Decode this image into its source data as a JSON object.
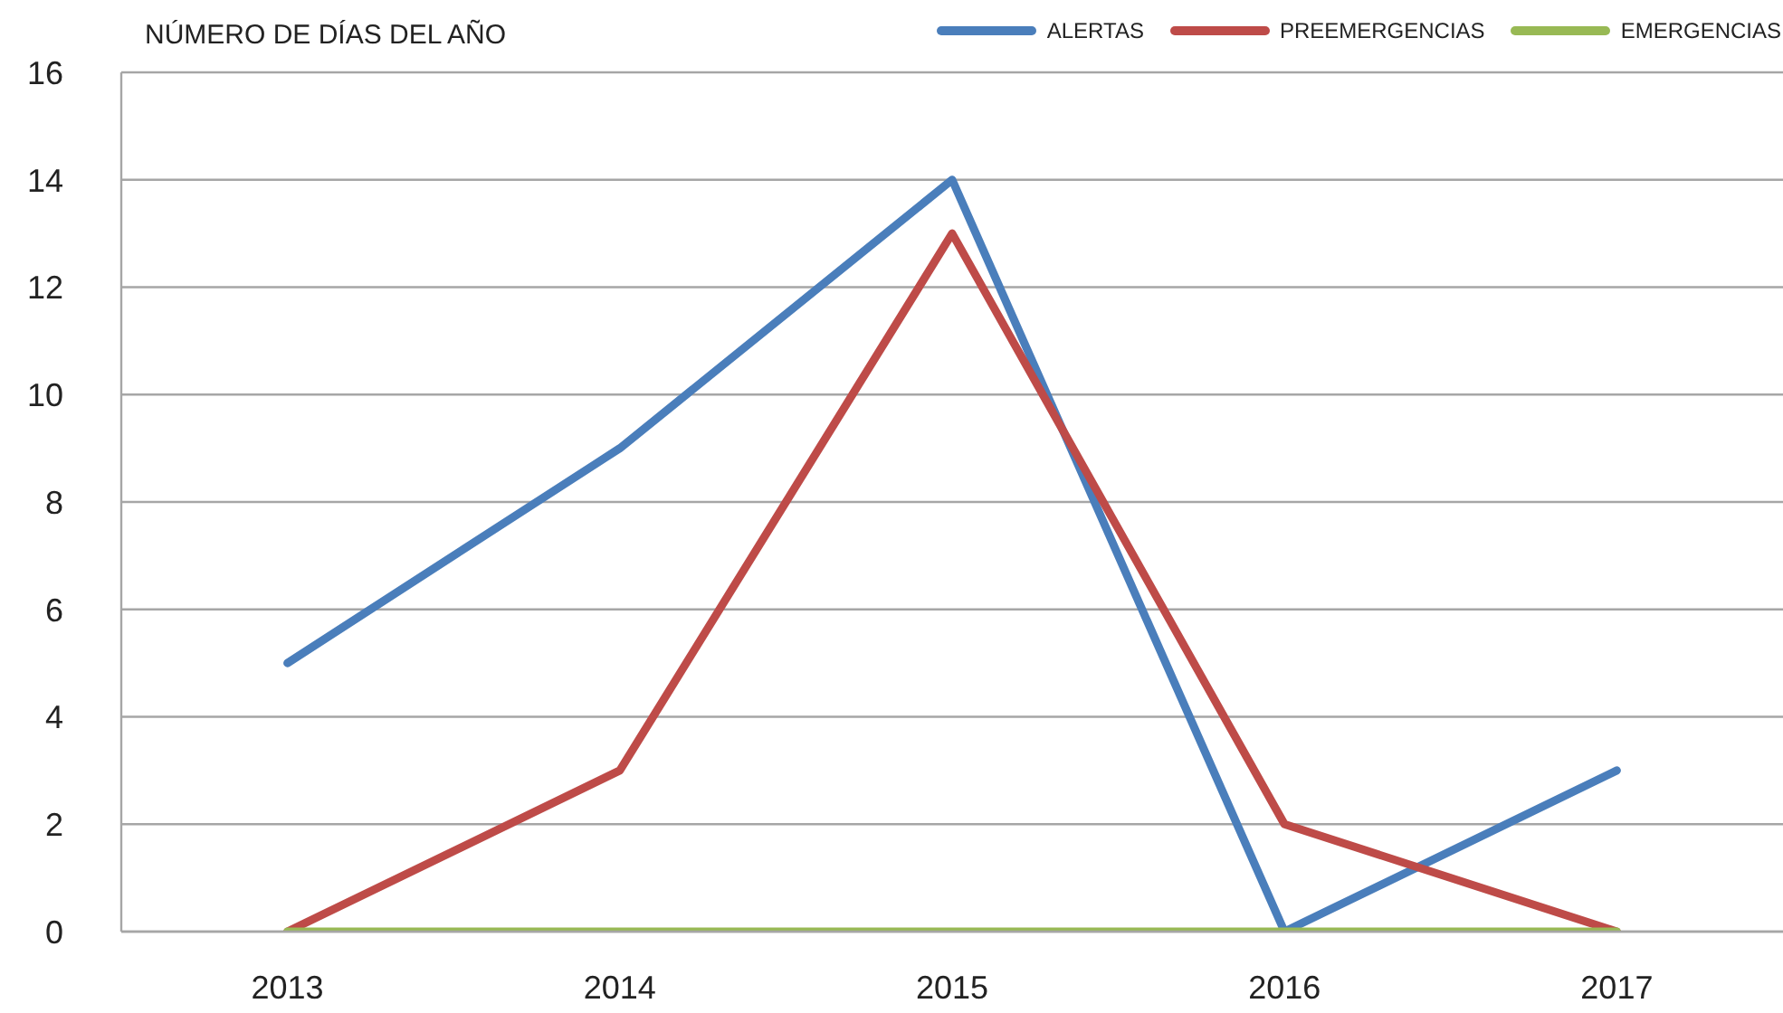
{
  "chart_data": {
    "type": "line",
    "ylabel": "NÚMERO DE DÍAS DEL AÑO",
    "categories": [
      "2013",
      "2014",
      "2015",
      "2016",
      "2017"
    ],
    "series": [
      {
        "name": "ALERTAS",
        "color": "#4a7ebb",
        "values": [
          5,
          9,
          14,
          0,
          3
        ]
      },
      {
        "name": "PREEMERGENCIAS",
        "color": "#be4b48",
        "values": [
          0,
          3,
          13,
          2,
          0
        ]
      },
      {
        "name": "EMERGENCIAS",
        "color": "#98b954",
        "values": [
          0,
          0,
          0,
          0,
          0
        ]
      }
    ],
    "ylim": [
      0,
      16
    ],
    "yticks": [
      0,
      2,
      4,
      6,
      8,
      10,
      12,
      14,
      16
    ],
    "grid": "y",
    "legend": "top right",
    "marker": "none",
    "line_style": "solid"
  }
}
